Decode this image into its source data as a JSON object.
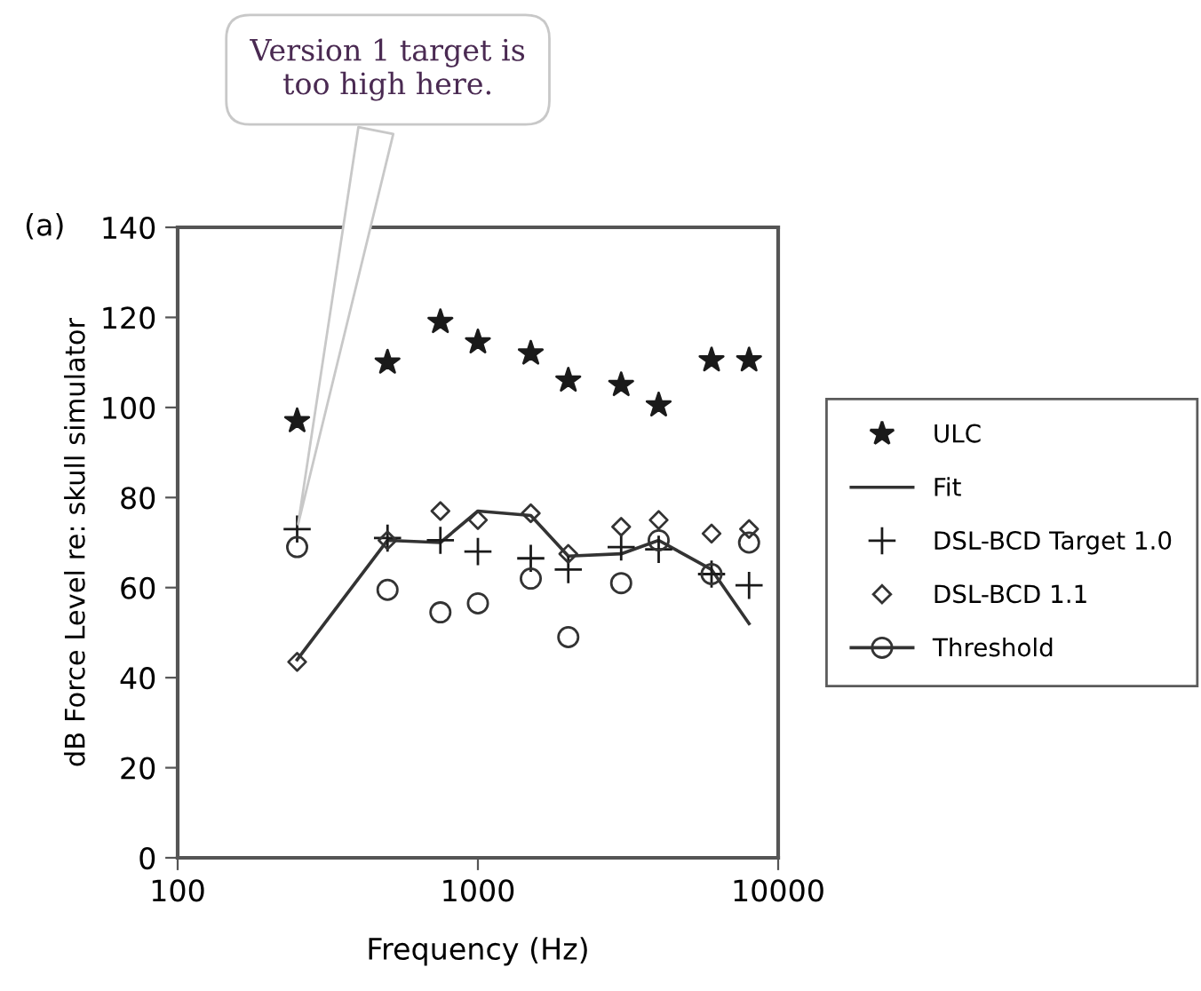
{
  "chart_data": {
    "type": "scatter",
    "xlabel": "Frequency (Hz)",
    "ylabel": "dB Force Level re: skull simulator",
    "x": [
      250,
      500,
      750,
      1000,
      1500,
      2000,
      3000,
      4000,
      6000,
      8000
    ],
    "log": "x",
    "xlim": [
      100,
      10000
    ],
    "xticks": [
      100,
      1000,
      10000
    ],
    "ylim": [
      0,
      140
    ],
    "yticks": [
      0,
      20,
      40,
      60,
      80,
      100,
      120,
      140
    ],
    "grid": false,
    "legend": "right",
    "series": [
      {
        "name": "ULC",
        "marker": "star",
        "color": "#1a1a1a",
        "values": [
          97,
          110,
          119,
          114.5,
          112,
          106,
          105,
          100.5,
          110.5,
          110.5
        ]
      },
      {
        "name": "Fit",
        "type": "line",
        "marker": "none",
        "line_style": "solid",
        "color": "#333333",
        "values": [
          44,
          70.5,
          70,
          77,
          76,
          67,
          67.5,
          70.5,
          64,
          52
        ]
      },
      {
        "name": "DSL-BCD Target 1.0",
        "marker": "cross",
        "color": "#1a1a1a",
        "values": [
          73,
          71,
          70.5,
          68,
          66.5,
          64,
          69,
          68.5,
          63,
          60.5
        ]
      },
      {
        "name": "DSL-BCD 1.1",
        "marker": "diamond",
        "color": "#333333",
        "values": [
          43.5,
          70.5,
          77,
          75,
          76.5,
          67.5,
          73.5,
          75,
          72,
          73
        ]
      },
      {
        "name": "Threshold",
        "marker": "circle",
        "color": "#333333",
        "values": [
          69,
          59.5,
          54.5,
          56.5,
          62,
          49,
          61,
          70.5,
          63,
          70
        ]
      }
    ],
    "annotations": [
      "(a)",
      {
        "text": "Version 1 target is\ntoo high here.",
        "x": 250,
        "y": 73
      }
    ]
  }
}
